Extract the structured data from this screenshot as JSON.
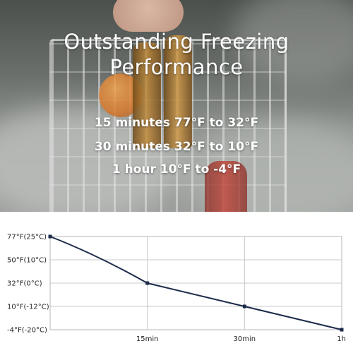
{
  "headline": {
    "line1": "Outstanding Freezing",
    "line2": "Performance"
  },
  "stats": [
    "15 minutes 77°F to 32°F",
    "30 minutes 32°F to 10°F",
    "1 hour 10°F to -4°F"
  ],
  "chart_data": {
    "type": "line",
    "title": "",
    "xlabel": "",
    "ylabel": "",
    "x_ticks": [
      {
        "label": "15min",
        "minutes": 15
      },
      {
        "label": "30min",
        "minutes": 30
      },
      {
        "label": "1h",
        "minutes": 45
      }
    ],
    "y_ticks": [
      {
        "label": "77°F(25°C)",
        "value": 77
      },
      {
        "label": "50°F(10°C)",
        "value": 50
      },
      {
        "label": "32°F(0°C)",
        "value": 32
      },
      {
        "label": "10°F(-12°C)",
        "value": 10
      },
      {
        "label": "-4°F(-20°C)",
        "value": -4
      }
    ],
    "series": [
      {
        "points": [
          {
            "minutes": 0,
            "value": 77
          },
          {
            "minutes": 15,
            "value": 32
          },
          {
            "minutes": 30,
            "value": 10
          },
          {
            "minutes": 45,
            "value": -4
          }
        ],
        "color": "#1c2a4a"
      }
    ],
    "grid": true
  }
}
